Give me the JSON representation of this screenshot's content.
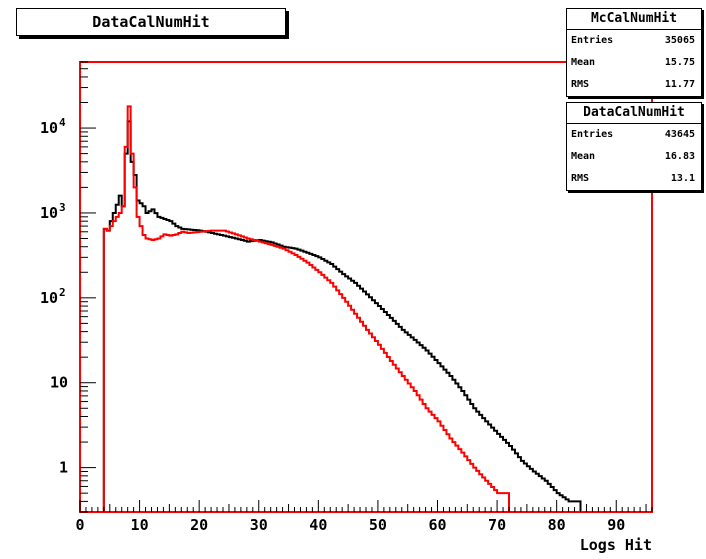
{
  "title": "DataCalNumHit",
  "stats": [
    {
      "name": "McCalNumHit",
      "rows": [
        {
          "label": "Entries",
          "value": "35065"
        },
        {
          "label": "Mean",
          "value": "15.75"
        },
        {
          "label": "RMS",
          "value": "11.77"
        }
      ]
    },
    {
      "name": "DataCalNumHit",
      "rows": [
        {
          "label": "Entries",
          "value": "43645"
        },
        {
          "label": "Mean",
          "value": "16.83"
        },
        {
          "label": "RMS",
          "value": "13.1"
        }
      ]
    }
  ],
  "chart_data": {
    "type": "histogram",
    "title": "DataCalNumHit",
    "xlabel": "Logs Hit",
    "ylabel": "",
    "xlim": [
      0,
      96
    ],
    "ylim": [
      0.3,
      60000
    ],
    "yscale": "log",
    "bin_width": 0.5,
    "x_ticks": [
      0,
      10,
      20,
      30,
      40,
      50,
      60,
      70,
      80,
      90
    ],
    "y_ticks": [
      {
        "value": 1,
        "label": "1"
      },
      {
        "value": 10,
        "label": "10"
      },
      {
        "value": 100,
        "label": "10",
        "sup": "2"
      },
      {
        "value": 1000,
        "label": "10",
        "sup": "3"
      },
      {
        "value": 10000,
        "label": "10",
        "sup": "4"
      }
    ],
    "grid": false,
    "series": [
      {
        "name": "McCalNumHit",
        "color": "#000000",
        "x": [
          0,
          4,
          4.5,
          5,
          5.5,
          6,
          6.5,
          7,
          7.5,
          8,
          8.5,
          9,
          9.5,
          10,
          10.5,
          11,
          12,
          13,
          14,
          15,
          16,
          17,
          18,
          20,
          22,
          24,
          26,
          28,
          30,
          32,
          34,
          36,
          38,
          40,
          42,
          44,
          46,
          48,
          50,
          52,
          54,
          56,
          58,
          60,
          62,
          64,
          66,
          68,
          70,
          72,
          74,
          76,
          78,
          80,
          82,
          84,
          86
        ],
        "values": [
          0,
          650,
          620,
          800,
          1000,
          1250,
          1600,
          1200,
          5000,
          12000,
          4000,
          2800,
          1400,
          1300,
          1200,
          1000,
          1100,
          900,
          850,
          800,
          700,
          650,
          640,
          620,
          580,
          540,
          500,
          460,
          480,
          450,
          400,
          380,
          340,
          300,
          250,
          190,
          150,
          110,
          80,
          58,
          42,
          32,
          24,
          17,
          12,
          8,
          5,
          3.5,
          2.5,
          1.8,
          1.2,
          0.9,
          0.7,
          0.5,
          0.4,
          0,
          0
        ]
      },
      {
        "name": "DataCalNumHit",
        "color": "#ff0000",
        "x": [
          0,
          4,
          4.5,
          5,
          5.5,
          6,
          6.5,
          7,
          7.5,
          8,
          8.5,
          9,
          9.5,
          10,
          10.5,
          11,
          12,
          13,
          14,
          15,
          16,
          17,
          18,
          20,
          22,
          24,
          26,
          28,
          30,
          32,
          34,
          36,
          38,
          40,
          42,
          44,
          46,
          48,
          50,
          52,
          54,
          56,
          58,
          60,
          62,
          64,
          66,
          68,
          70,
          72,
          74,
          76,
          78
        ],
        "values": [
          0,
          650,
          620,
          700,
          800,
          900,
          1000,
          1200,
          6000,
          18000,
          5000,
          2000,
          900,
          700,
          550,
          500,
          480,
          500,
          560,
          540,
          560,
          600,
          580,
          600,
          620,
          620,
          560,
          500,
          460,
          420,
          380,
          320,
          260,
          200,
          150,
          100,
          65,
          42,
          28,
          18,
          12,
          8,
          5,
          3.5,
          2.2,
          1.5,
          1.0,
          0.7,
          0.5,
          0,
          0,
          0,
          0
        ]
      }
    ]
  }
}
